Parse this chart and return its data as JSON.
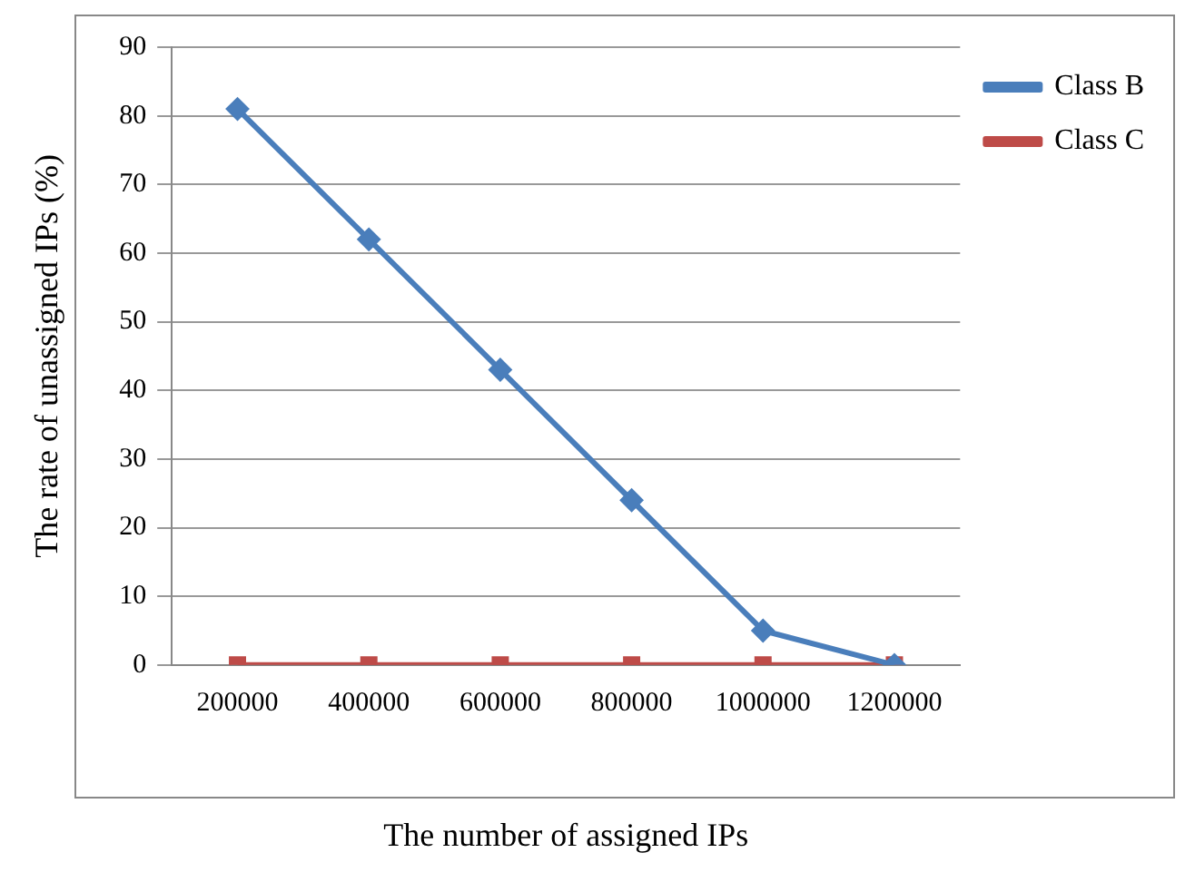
{
  "chart_data": {
    "type": "line",
    "xlabel": "The number of assigned IPs",
    "ylabel": "The rate of unassigned IPs (%)",
    "categories": [
      "200000",
      "400000",
      "600000",
      "800000",
      "1000000",
      "1200000"
    ],
    "series": [
      {
        "name": "Class B",
        "color": "#4a7ebb",
        "marker": "diamond",
        "values": [
          81,
          62,
          43,
          24,
          5,
          0
        ]
      },
      {
        "name": "Class C",
        "color": "#be4b48",
        "marker": "square",
        "values": [
          0,
          0,
          0,
          0,
          0,
          0
        ]
      }
    ],
    "ylim": [
      0,
      90
    ],
    "yticks": [
      0,
      10,
      20,
      30,
      40,
      50,
      60,
      70,
      80,
      90
    ],
    "grid": "y",
    "legend": "top right",
    "line_style": "solid"
  }
}
